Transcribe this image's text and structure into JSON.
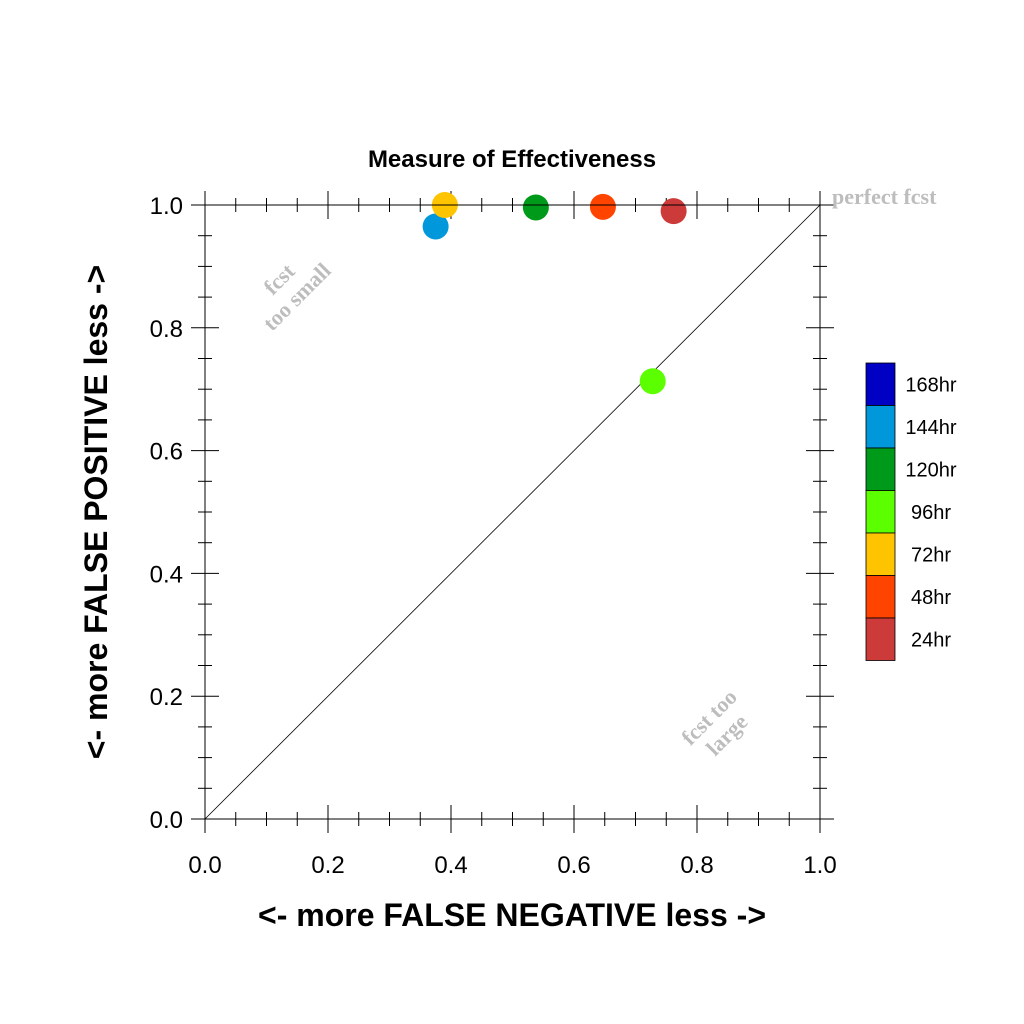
{
  "chart_data": {
    "type": "scatter",
    "title": "Measure of Effectiveness",
    "xlabel": "<- more   FALSE NEGATIVE   less ->",
    "ylabel": "<- more   FALSE POSITIVE   less ->",
    "xlim": [
      0,
      1
    ],
    "ylim": [
      0,
      1
    ],
    "xticks": [
      "0.0",
      "0.2",
      "0.4",
      "0.6",
      "0.8",
      "1.0"
    ],
    "yticks": [
      "0.0",
      "0.2",
      "0.4",
      "0.6",
      "0.8",
      "1.0"
    ],
    "diagonal_line": true,
    "annotations": {
      "perfect": "perfect fcst",
      "too_small": [
        "fcst",
        "too small"
      ],
      "too_large": [
        "fcst too",
        "large"
      ]
    },
    "legend_position": "right",
    "series": [
      {
        "name": "168hr",
        "color": "#0000c4",
        "points": []
      },
      {
        "name": "144hr",
        "color": "#0098da",
        "points": [
          [
            0.375,
            0.965
          ]
        ]
      },
      {
        "name": "120hr",
        "color": "#009a1a",
        "points": [
          [
            0.538,
            0.996
          ]
        ]
      },
      {
        "name": "96hr",
        "color": "#5cff00",
        "points": [
          [
            0.728,
            0.713
          ]
        ]
      },
      {
        "name": "72hr",
        "color": "#ffc400",
        "points": [
          [
            0.39,
            1.0
          ]
        ]
      },
      {
        "name": "48hr",
        "color": "#ff4400",
        "points": [
          [
            0.647,
            0.997
          ]
        ]
      },
      {
        "name": "24hr",
        "color": "#cc3a3a",
        "points": [
          [
            0.762,
            0.99
          ]
        ]
      }
    ]
  }
}
